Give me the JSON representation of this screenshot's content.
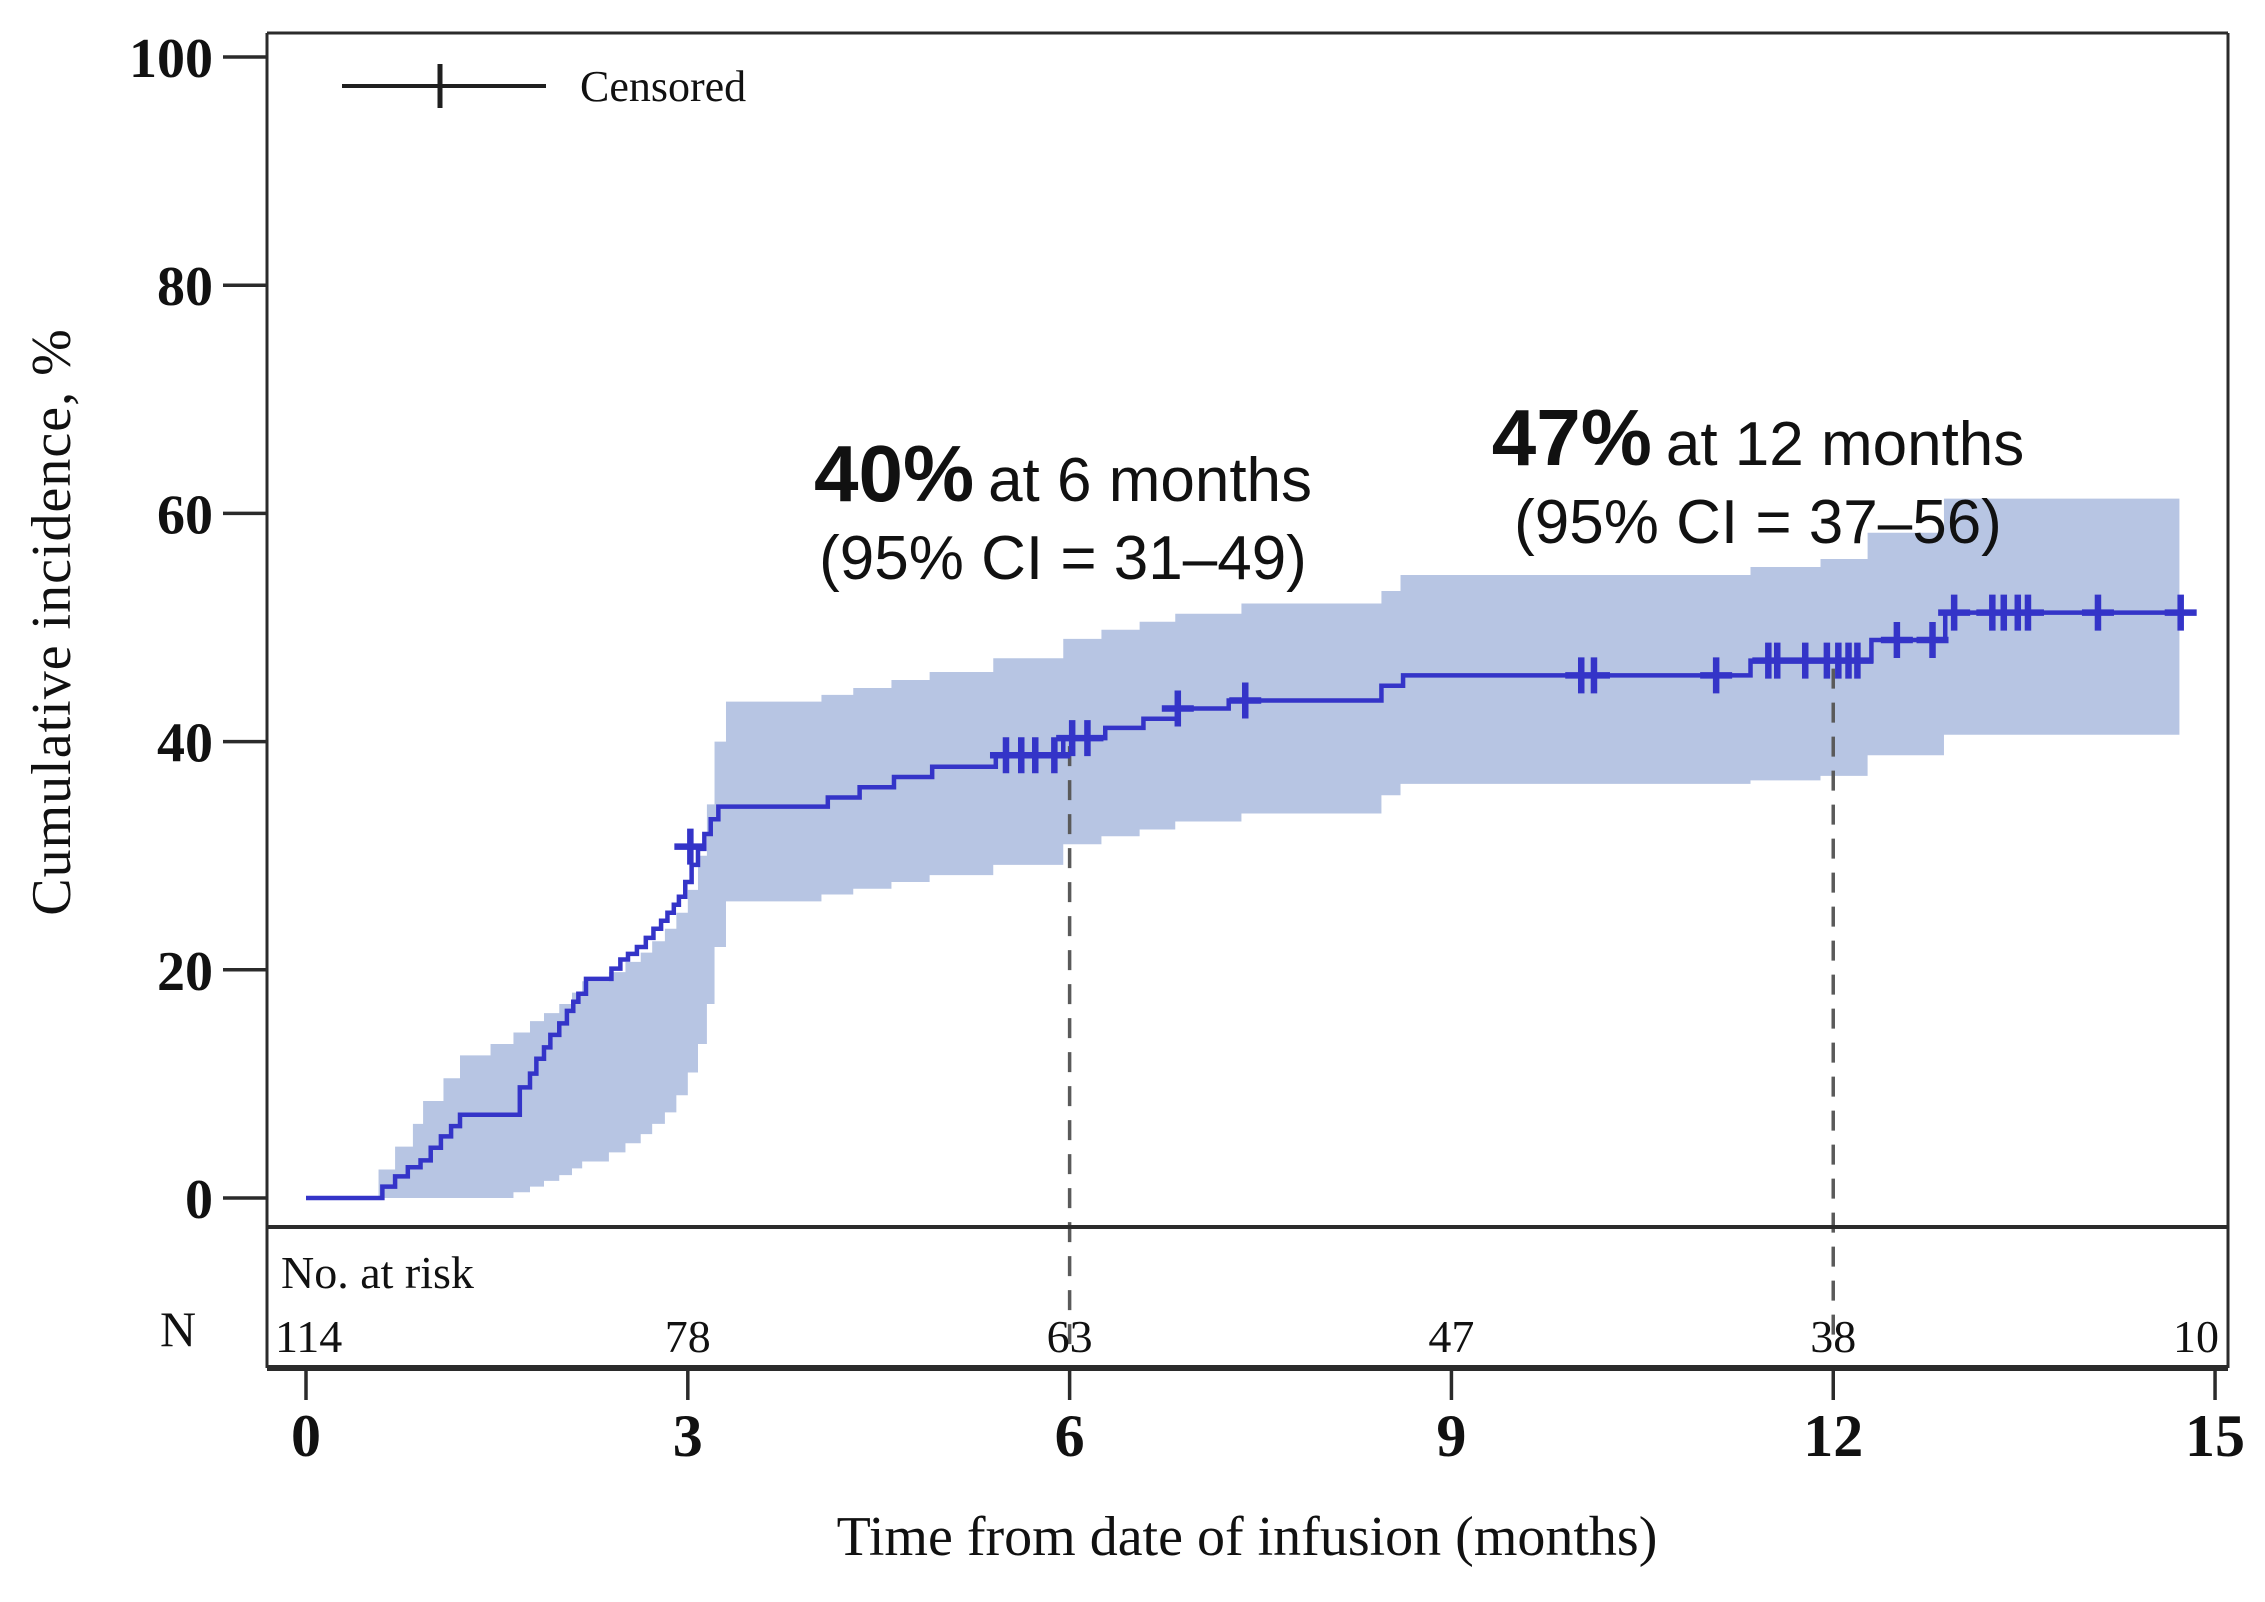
{
  "legend": {
    "label": "Censored"
  },
  "y_axis": {
    "title": "Cumulative incidence, %",
    "ticks": [
      0,
      20,
      40,
      60,
      80,
      100
    ],
    "range": [
      0,
      100
    ]
  },
  "x_axis": {
    "title": "Time from date of infusion (months)",
    "ticks": [
      0,
      3,
      6,
      9,
      12,
      15
    ],
    "range": [
      0,
      15
    ]
  },
  "annotations": [
    {
      "pct": "40%",
      "rest": "at 6 months",
      "ci": "(95% CI = 31–49)"
    },
    {
      "pct": "47%",
      "rest": "at 12 months",
      "ci": "(95% CI = 37–56)"
    }
  ],
  "risk_table": {
    "label": "No. at risk",
    "row_label": "N",
    "months": [
      0,
      3,
      6,
      9,
      12,
      15
    ],
    "values": [
      114,
      78,
      63,
      47,
      38,
      10
    ]
  },
  "chart_data": {
    "type": "line",
    "subtype": "step-cumulative-incidence",
    "title": "",
    "xlabel": "Time from date of infusion (months)",
    "ylabel": "Cumulative incidence, %",
    "xlim": [
      0,
      15
    ],
    "ylim": [
      0,
      100
    ],
    "grid": false,
    "legend_position": "top-left-inside",
    "curve": [
      [
        0,
        0
      ],
      [
        0.6,
        1
      ],
      [
        0.7,
        1.9
      ],
      [
        0.8,
        2.7
      ],
      [
        0.9,
        3.3
      ],
      [
        0.98,
        4.4
      ],
      [
        1.06,
        5.4
      ],
      [
        1.14,
        6.3
      ],
      [
        1.21,
        7.3
      ],
      [
        1.68,
        9.7
      ],
      [
        1.76,
        10.9
      ],
      [
        1.81,
        12.2
      ],
      [
        1.87,
        13.2
      ],
      [
        1.92,
        14.3
      ],
      [
        1.99,
        15.3
      ],
      [
        2.05,
        16.4
      ],
      [
        2.1,
        17.2
      ],
      [
        2.14,
        17.9
      ],
      [
        2.2,
        19.2
      ],
      [
        2.4,
        20.1
      ],
      [
        2.47,
        20.9
      ],
      [
        2.53,
        21.4
      ],
      [
        2.6,
        22
      ],
      [
        2.67,
        22.8
      ],
      [
        2.73,
        23.6
      ],
      [
        2.79,
        24.3
      ],
      [
        2.84,
        25
      ],
      [
        2.89,
        25.7
      ],
      [
        2.93,
        26.4
      ],
      [
        2.98,
        27.7
      ],
      [
        3.03,
        29.2
      ],
      [
        3.08,
        30.6
      ],
      [
        3.13,
        31.9
      ],
      [
        3.18,
        33.2
      ],
      [
        3.24,
        34.3
      ],
      [
        4.1,
        35.1
      ],
      [
        4.35,
        36
      ],
      [
        4.62,
        36.9
      ],
      [
        4.92,
        37.8
      ],
      [
        5.42,
        38.8
      ],
      [
        5.95,
        40.3
      ],
      [
        6.28,
        41.2
      ],
      [
        6.58,
        42
      ],
      [
        6.85,
        42.9
      ],
      [
        7.25,
        43.6
      ],
      [
        8.45,
        44.9
      ],
      [
        8.62,
        45.8
      ],
      [
        11.35,
        47.1
      ],
      [
        12.3,
        48.9
      ],
      [
        12.88,
        51.3
      ]
    ],
    "curve_end_month": 14.85,
    "censor_marks": [
      [
        3.02,
        30.8
      ],
      [
        5.5,
        38.8
      ],
      [
        5.62,
        38.8
      ],
      [
        5.73,
        38.8
      ],
      [
        5.88,
        38.8
      ],
      [
        6.02,
        40.3
      ],
      [
        6.14,
        40.3
      ],
      [
        6.85,
        42.9
      ],
      [
        7.38,
        43.6
      ],
      [
        10.02,
        45.8
      ],
      [
        10.12,
        45.8
      ],
      [
        11.08,
        45.8
      ],
      [
        11.49,
        47.1
      ],
      [
        11.56,
        47.1
      ],
      [
        11.78,
        47.1
      ],
      [
        11.95,
        47.1
      ],
      [
        12.04,
        47.1
      ],
      [
        12.12,
        47.1
      ],
      [
        12.19,
        47.1
      ],
      [
        12.5,
        48.9
      ],
      [
        12.78,
        48.9
      ],
      [
        12.95,
        51.3
      ],
      [
        13.25,
        51.3
      ],
      [
        13.34,
        51.3
      ],
      [
        13.45,
        51.3
      ],
      [
        13.53,
        51.3
      ],
      [
        14.08,
        51.3
      ],
      [
        14.73,
        51.3
      ]
    ],
    "ci_band": [
      [
        0.57,
        0,
        2.5
      ],
      [
        0.7,
        0,
        4.5
      ],
      [
        0.84,
        0,
        6.5
      ],
      [
        0.92,
        0,
        8.5
      ],
      [
        1.08,
        0,
        10.5
      ],
      [
        1.21,
        0,
        12.5
      ],
      [
        1.45,
        0,
        13.5
      ],
      [
        1.63,
        0.5,
        14.5
      ],
      [
        1.76,
        1,
        15.5
      ],
      [
        1.87,
        1.5,
        16.2
      ],
      [
        1.99,
        2,
        17
      ],
      [
        2.09,
        2.6,
        18
      ],
      [
        2.17,
        3.2,
        19
      ],
      [
        2.38,
        4,
        19.8
      ],
      [
        2.51,
        4.8,
        20.7
      ],
      [
        2.63,
        5.6,
        21.5
      ],
      [
        2.72,
        6.5,
        22.5
      ],
      [
        2.82,
        7.5,
        23.6
      ],
      [
        2.91,
        9,
        25
      ],
      [
        3,
        11,
        27
      ],
      [
        3.08,
        13.5,
        30
      ],
      [
        3.15,
        17,
        34.5
      ],
      [
        3.21,
        22,
        40
      ],
      [
        3.3,
        26,
        43.5
      ],
      [
        4.05,
        26.6,
        44.1
      ],
      [
        4.3,
        27.1,
        44.7
      ],
      [
        4.6,
        27.7,
        45.4
      ],
      [
        4.9,
        28.3,
        46.1
      ],
      [
        5.4,
        29.2,
        47.3
      ],
      [
        5.95,
        31,
        49
      ],
      [
        6.25,
        31.7,
        49.8
      ],
      [
        6.55,
        32.3,
        50.5
      ],
      [
        6.83,
        33,
        51.2
      ],
      [
        7.35,
        33.7,
        52.1
      ],
      [
        8.45,
        35.3,
        53.2
      ],
      [
        8.6,
        36.3,
        54.6
      ],
      [
        11.35,
        36.6,
        55.3
      ],
      [
        11.9,
        37,
        56
      ],
      [
        12.27,
        38.8,
        58.3
      ],
      [
        12.87,
        40.6,
        61.3
      ]
    ],
    "band_end_month": 14.72,
    "ref_lines": [
      {
        "month": 6,
        "value": 40.3,
        "estimate_label": "40%",
        "ci_label": "31–49"
      },
      {
        "month": 12,
        "value": 47.1,
        "estimate_label": "47%",
        "ci_label": "37–56"
      }
    ],
    "colors": {
      "curve": "#3434c8",
      "ci_band": "#b7c5e3",
      "reference_dash": "#5a5a5a",
      "axis": "#2b2b2b",
      "text": "#111111"
    }
  }
}
